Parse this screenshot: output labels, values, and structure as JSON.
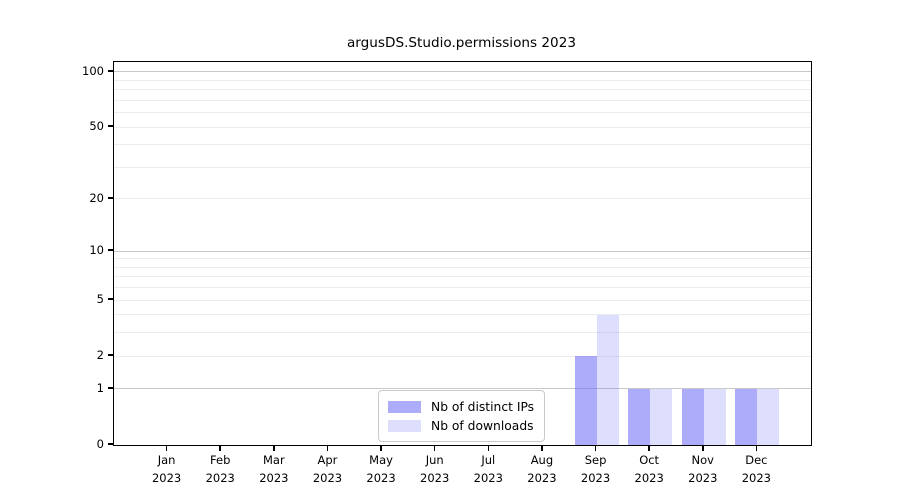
{
  "chart_data": {
    "type": "bar",
    "title": "argusDS.Studio.permissions 2023",
    "year_label": "2023",
    "categories": [
      "Jan",
      "Feb",
      "Mar",
      "Apr",
      "May",
      "Jun",
      "Jul",
      "Aug",
      "Sep",
      "Oct",
      "Nov",
      "Dec"
    ],
    "series": [
      {
        "name": "Nb of distinct IPs",
        "color": "rgba(104,104,245,0.55)",
        "values": [
          0,
          0,
          0,
          0,
          0,
          0,
          0,
          0,
          2,
          1,
          1,
          1
        ]
      },
      {
        "name": "Nb of downloads",
        "color": "rgba(104,104,245,0.22)",
        "values": [
          0,
          0,
          0,
          0,
          0,
          0,
          0,
          0,
          4,
          1,
          1,
          1
        ]
      }
    ],
    "scale": "log1p",
    "ylim": [
      0,
      113
    ],
    "y_ticks": [
      0,
      1,
      2,
      5,
      10,
      20,
      50,
      100
    ],
    "major_gridlines": [
      1,
      10,
      100
    ],
    "minor_gridlines": [
      2,
      3,
      4,
      5,
      6,
      7,
      8,
      9,
      20,
      30,
      40,
      50,
      60,
      70,
      80,
      90
    ],
    "grid": "on",
    "legend_position": "lower center",
    "colors": {
      "axis": "#000000",
      "grid_major": "#c8c8c8",
      "grid_minor": "#ececec",
      "background": "#ffffff"
    }
  }
}
